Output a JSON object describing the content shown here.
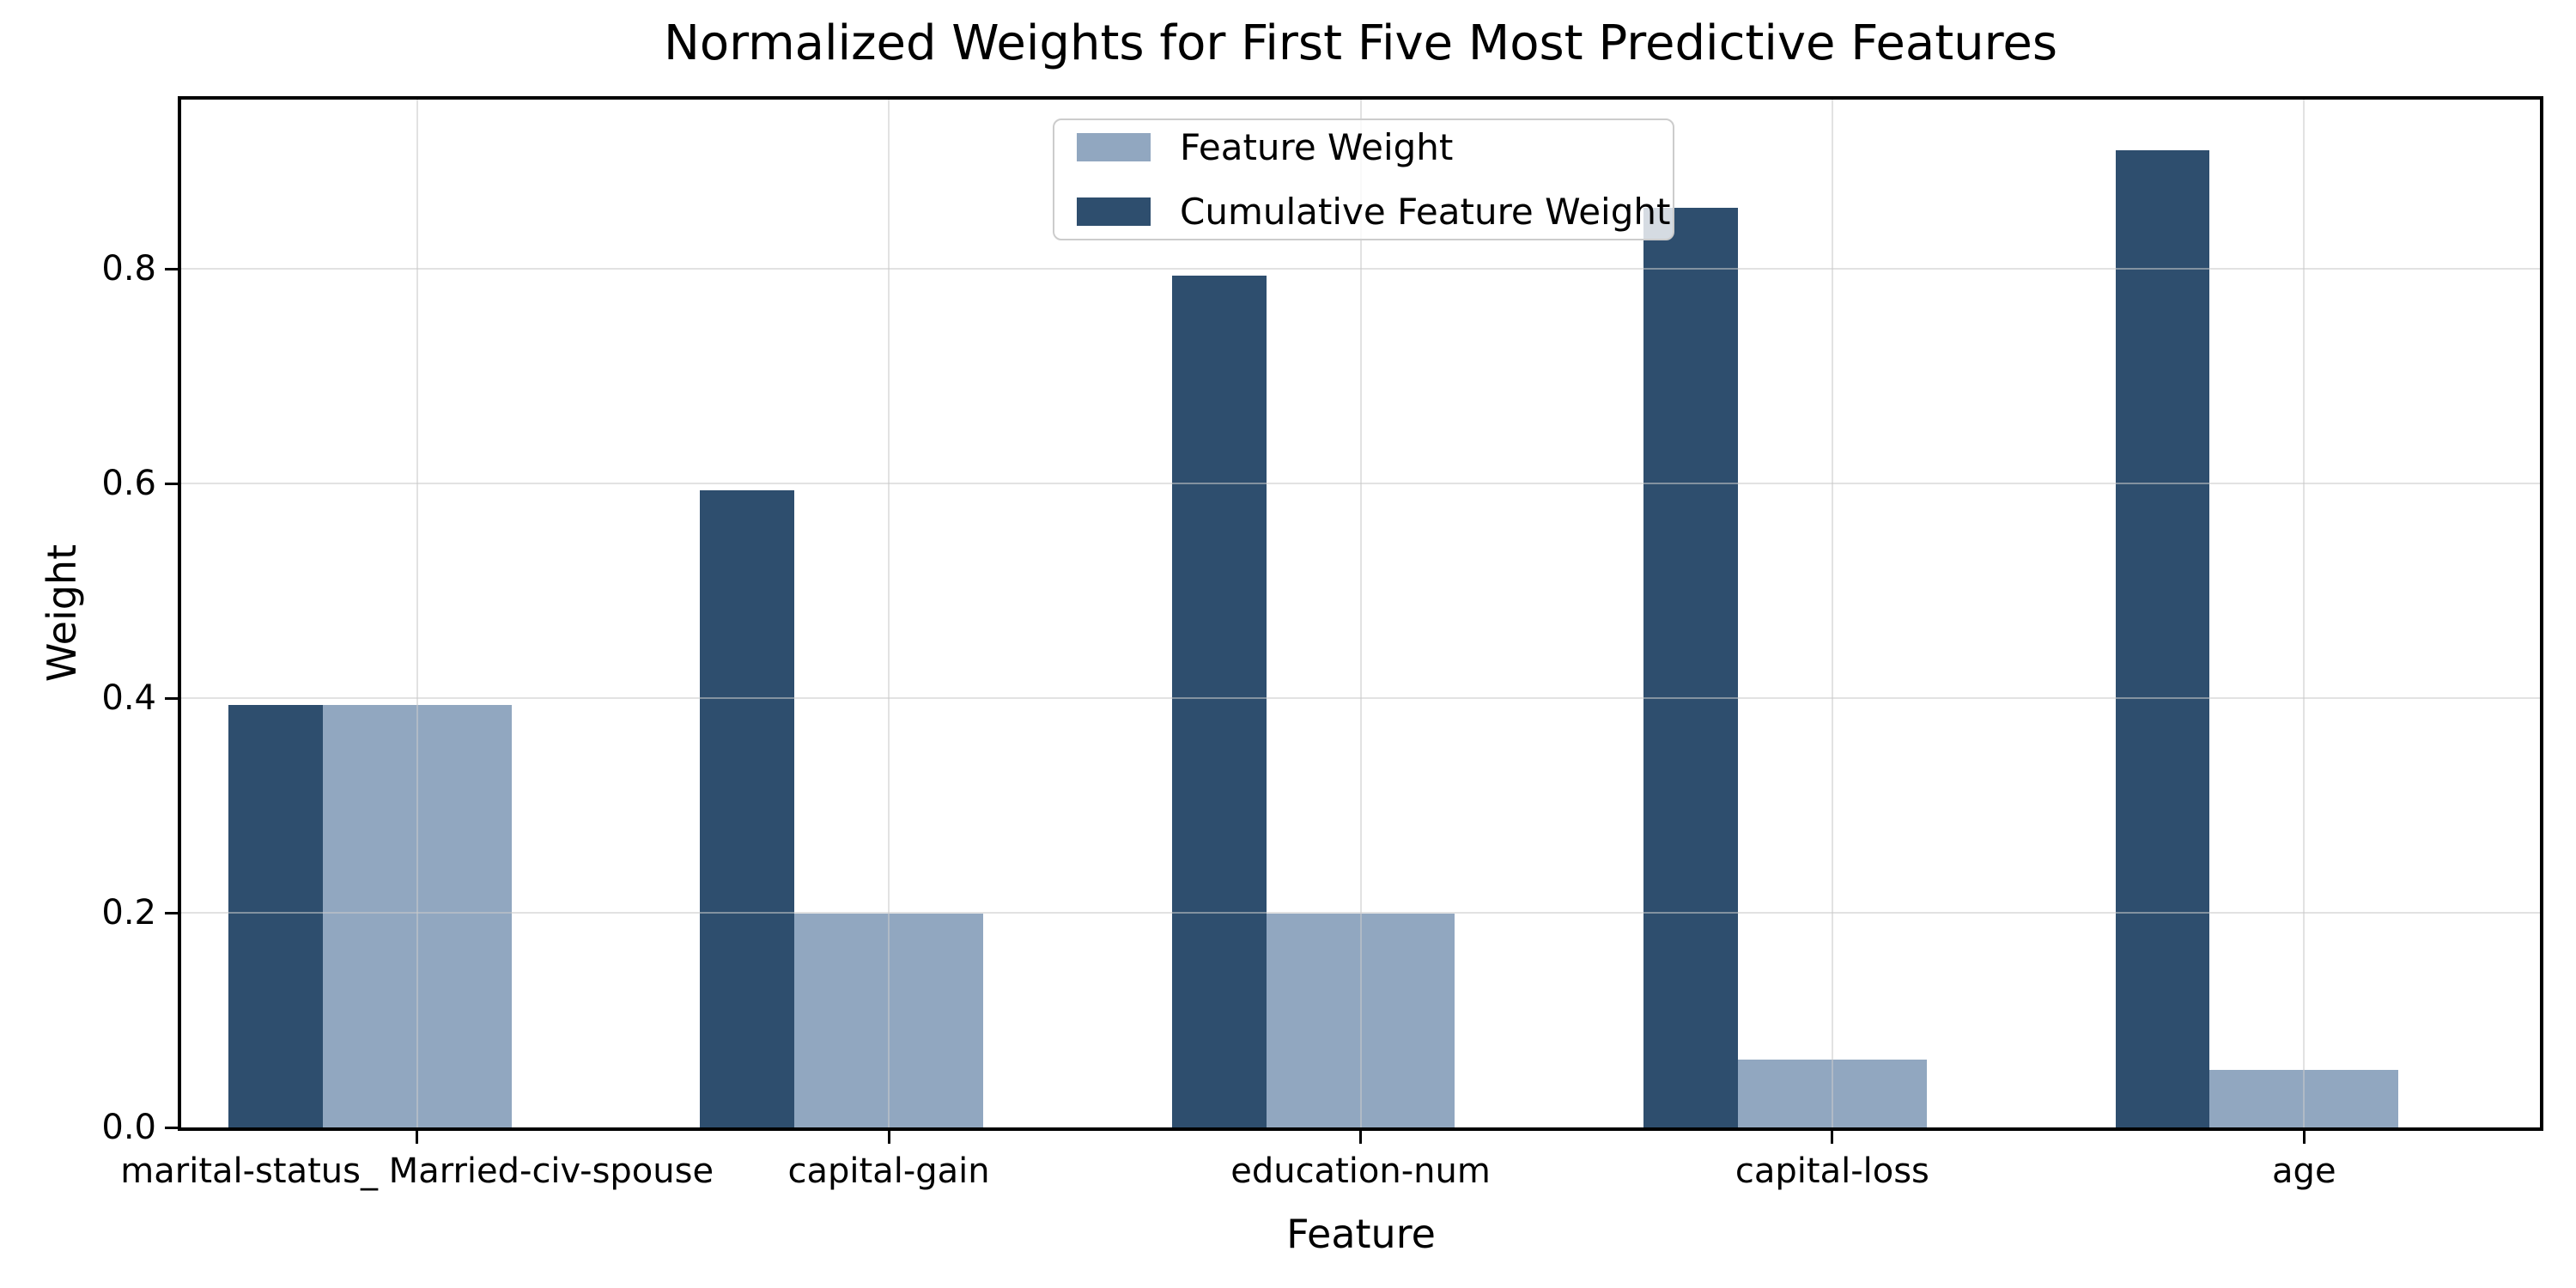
{
  "chart_data": {
    "type": "bar",
    "title": "Normalized Weights for First Five Most Predictive Features",
    "xlabel": "Feature",
    "ylabel": "Weight",
    "categories": [
      "marital-status_ Married-civ-spouse",
      "capital-gain",
      "education-num",
      "capital-loss",
      "age"
    ],
    "series": [
      {
        "name": "Feature Weight",
        "color": "#91A7C0",
        "values": [
          0.394,
          0.199,
          0.199,
          0.063,
          0.054
        ]
      },
      {
        "name": "Cumulative Feature Weight",
        "color": "#2E4E6E",
        "values": [
          0.394,
          0.594,
          0.794,
          0.857,
          0.911
        ]
      }
    ],
    "ytick_labels": [
      "0.0",
      "0.2",
      "0.4",
      "0.6",
      "0.8"
    ],
    "ytick_values": [
      0.0,
      0.2,
      0.4,
      0.6,
      0.8
    ],
    "ylim": [
      0,
      0.958
    ],
    "grid": true,
    "legend_position": "upper center",
    "legend_labels": [
      "Feature Weight",
      "Cumulative Feature Weight"
    ],
    "axis_color": "#000000",
    "grid_color": "#e6e6e6",
    "background_color": "#ffffff"
  }
}
